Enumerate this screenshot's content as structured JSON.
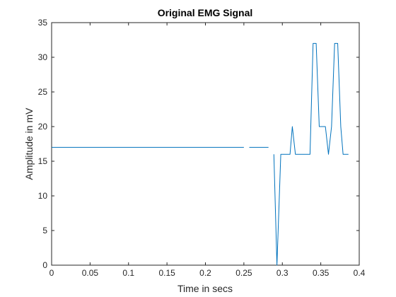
{
  "chart_data": {
    "type": "line",
    "title": "Original EMG Signal",
    "xlabel": "Time in secs",
    "ylabel": "Amplitude in mV",
    "xlim": [
      0,
      0.4
    ],
    "ylim": [
      0,
      35
    ],
    "xticks": [
      "0",
      "0.05",
      "0.1",
      "0.15",
      "0.2",
      "0.25",
      "0.3",
      "0.35",
      "0.4"
    ],
    "yticks": [
      "0",
      "5",
      "10",
      "15",
      "20",
      "25",
      "30",
      "35"
    ],
    "grid": false,
    "legend": "none",
    "color": "#0072bd",
    "segments": [
      {
        "x": [
          0,
          0.25
        ],
        "y": [
          17,
          17
        ]
      },
      {
        "x": [
          0.257,
          0.282
        ],
        "y": [
          17,
          17
        ]
      },
      {
        "x": [
          0.289,
          0.293,
          0.298,
          0.3,
          0.305,
          0.31,
          0.313,
          0.317,
          0.322,
          0.327,
          0.332,
          0.336,
          0.34,
          0.344,
          0.348,
          0.352,
          0.356,
          0.36,
          0.364,
          0.368,
          0.372,
          0.376,
          0.379,
          0.383,
          0.386
        ],
        "y": [
          16,
          0,
          16,
          16,
          16,
          16,
          20,
          16,
          16,
          16,
          16,
          16,
          32,
          32,
          20,
          20,
          20,
          16,
          20,
          32,
          32,
          20,
          16,
          16,
          16
        ]
      }
    ]
  }
}
